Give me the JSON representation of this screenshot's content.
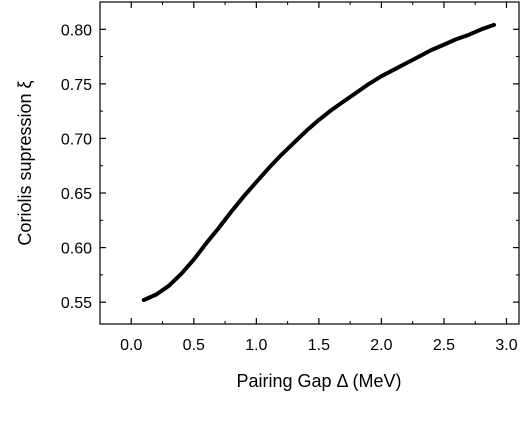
{
  "chart_data": {
    "type": "line",
    "title": "",
    "xlabel": "Pairing Gap Δ (MeV)",
    "ylabel": "Coriolis supression ξ",
    "xlim": [
      -0.25,
      3.1
    ],
    "ylim": [
      0.53,
      0.825
    ],
    "grid": false,
    "legend": "none",
    "x_ticks": [
      0.0,
      0.5,
      1.0,
      1.5,
      2.0,
      2.5,
      3.0
    ],
    "x_tick_labels": [
      "0.0",
      "0.5",
      "1.0",
      "1.5",
      "2.0",
      "2.5",
      "3.0"
    ],
    "y_ticks": [
      0.55,
      0.6,
      0.65,
      0.7,
      0.75,
      0.8
    ],
    "y_tick_labels": [
      "0.55",
      "0.60",
      "0.65",
      "0.70",
      "0.75",
      "0.80"
    ],
    "line_color": "#000000",
    "series": [
      {
        "x": [
          0.1,
          0.2,
          0.3,
          0.4,
          0.5,
          0.6,
          0.7,
          0.8,
          0.9,
          1.0,
          1.1,
          1.2,
          1.3,
          1.4,
          1.5,
          1.6,
          1.7,
          1.8,
          1.9,
          2.0,
          2.1,
          2.2,
          2.3,
          2.4,
          2.5,
          2.6,
          2.7,
          2.8,
          2.9
        ],
        "values": [
          0.552,
          0.557,
          0.565,
          0.576,
          0.589,
          0.604,
          0.618,
          0.633,
          0.647,
          0.66,
          0.673,
          0.685,
          0.696,
          0.707,
          0.717,
          0.726,
          0.734,
          0.742,
          0.75,
          0.757,
          0.763,
          0.769,
          0.775,
          0.781,
          0.786,
          0.791,
          0.795,
          0.8,
          0.804
        ]
      }
    ]
  }
}
